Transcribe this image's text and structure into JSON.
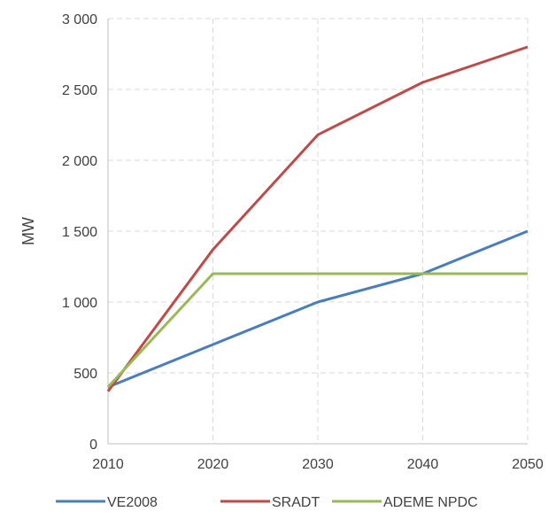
{
  "chart_data": {
    "type": "line",
    "title": "",
    "xlabel": "",
    "ylabel": "MW",
    "x": [
      2010,
      2020,
      2030,
      2040,
      2050
    ],
    "x_tick_labels": [
      "2010",
      "2020",
      "2030",
      "2040",
      "2050"
    ],
    "xlim": [
      2010,
      2050
    ],
    "ylim": [
      0,
      3000
    ],
    "y_ticks": [
      0,
      500,
      1000,
      1500,
      2000,
      2500,
      3000
    ],
    "y_tick_labels": [
      "0",
      "500",
      "1 000",
      "1 500",
      "2 000",
      "2 500",
      "3 000"
    ],
    "grid": "dashed vertical and horizontal",
    "legend_position": "bottom",
    "series": [
      {
        "name": "VE2008",
        "color": "#4a7ebb",
        "values": [
          400,
          700,
          1000,
          1200,
          1500
        ]
      },
      {
        "name": "SRADT",
        "color": "#be4b48",
        "values": [
          370,
          1370,
          2180,
          2550,
          2800
        ]
      },
      {
        "name": "ADEME NPDC",
        "color": "#98b954",
        "values": [
          400,
          1200,
          1200,
          1200,
          1200
        ]
      }
    ]
  }
}
